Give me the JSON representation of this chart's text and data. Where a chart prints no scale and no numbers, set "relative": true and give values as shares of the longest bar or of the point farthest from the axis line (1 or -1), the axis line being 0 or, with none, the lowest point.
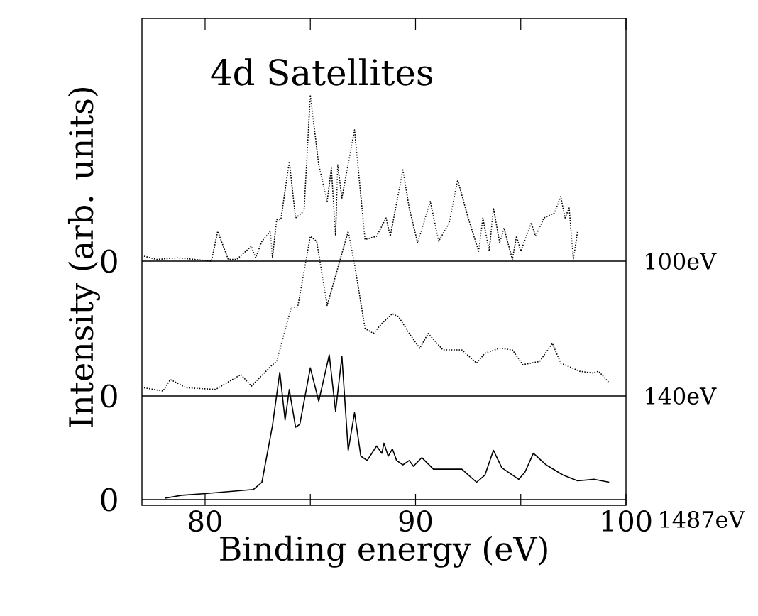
{
  "chart_data": [
    {
      "type": "line",
      "title": "4d Satellites",
      "relative": true,
      "xlim": [
        77,
        100
      ],
      "tick_labels": false,
      "line_style": "dotted",
      "annotations": [
        "0"
      ],
      "series": [
        {
          "name": "100eV",
          "color": "#000000",
          "x": [
            77.1,
            77.7,
            78.7,
            80.3,
            80.6,
            81.1,
            81.5,
            82.2,
            82.4,
            82.7,
            83.1,
            83.2,
            83.4,
            83.6,
            84.0,
            84.3,
            84.7,
            85.0,
            85.4,
            85.8,
            86.0,
            86.2,
            86.3,
            86.5,
            87.1,
            87.6,
            88.15,
            88.6,
            88.8,
            89.4,
            89.7,
            90.1,
            90.7,
            91.1,
            91.6,
            92.0,
            92.5,
            93.0,
            93.2,
            93.5,
            93.7,
            94.0,
            94.2,
            94.6,
            94.8,
            95.0,
            95.5,
            95.7,
            96.1,
            96.6,
            96.9,
            97.1,
            97.3,
            97.5,
            97.7
          ],
          "values": [
            0.03,
            0.01,
            0.02,
            0,
            0.18,
            0.01,
            0.01,
            0.09,
            0.02,
            0.12,
            0.18,
            0.02,
            0.25,
            0.25,
            0.6,
            0.26,
            0.3,
            1.0,
            0.58,
            0.36,
            0.56,
            0.15,
            0.58,
            0.38,
            0.79,
            0.13,
            0.15,
            0.26,
            0.15,
            0.55,
            0.32,
            0.11,
            0.36,
            0.12,
            0.23,
            0.49,
            0.26,
            0.06,
            0.26,
            0.06,
            0.32,
            0.11,
            0.2,
            0.01,
            0.15,
            0.06,
            0.23,
            0.15,
            0.26,
            0.29,
            0.39,
            0.26,
            0.32,
            0.01,
            0.18
          ]
        }
      ]
    },
    {
      "type": "line",
      "ylabel": "Intensity (arb. units)",
      "relative": true,
      "xlim": [
        77,
        100
      ],
      "tick_labels": false,
      "line_style": "dotted",
      "annotations": [
        "0"
      ],
      "series": [
        {
          "name": "140eV",
          "color": "#000000",
          "x": [
            77.1,
            78.0,
            78.35,
            79.1,
            80.5,
            81.7,
            82.2,
            83.2,
            83.4,
            84.1,
            84.4,
            85.0,
            85.3,
            85.8,
            86.8,
            87.1,
            87.6,
            88.0,
            88.4,
            88.9,
            89.2,
            89.7,
            90.2,
            90.6,
            91.3,
            92.2,
            92.9,
            93.3,
            94.0,
            94.6,
            95.1,
            95.9,
            96.5,
            96.9,
            97.8,
            98.4,
            98.7,
            99.2
          ],
          "values": [
            0.05,
            0.03,
            0.1,
            0.05,
            0.04,
            0.13,
            0.06,
            0.19,
            0.21,
            0.54,
            0.54,
            0.97,
            0.94,
            0.55,
            1.0,
            0.8,
            0.41,
            0.38,
            0.44,
            0.5,
            0.48,
            0.38,
            0.29,
            0.38,
            0.28,
            0.28,
            0.2,
            0.26,
            0.29,
            0.28,
            0.19,
            0.21,
            0.32,
            0.2,
            0.15,
            0.14,
            0.15,
            0.08
          ]
        }
      ]
    },
    {
      "type": "line",
      "xlabel": "Binding energy (eV)",
      "relative": true,
      "xlim": [
        77,
        100
      ],
      "xticks": [
        80,
        {
          "value": 85,
          "label": null
        },
        90,
        {
          "value": 95,
          "label": null
        },
        100
      ],
      "tick_labels": "x",
      "line_style": "solid",
      "annotations": [
        "0"
      ],
      "series": [
        {
          "name": "1487eV",
          "color": "#000000",
          "x": [
            78.1,
            78.9,
            79.9,
            82.3,
            82.7,
            83.2,
            83.55,
            83.8,
            84.0,
            84.3,
            84.5,
            85.0,
            85.4,
            85.9,
            86.2,
            86.5,
            86.8,
            87.1,
            87.4,
            87.7,
            88.15,
            88.4,
            88.5,
            88.7,
            88.9,
            89.1,
            89.4,
            89.7,
            89.9,
            90.3,
            90.85,
            92.2,
            92.9,
            93.3,
            93.7,
            94.1,
            94.9,
            95.2,
            95.6,
            96.2,
            97.0,
            97.7,
            98.5,
            99.2
          ],
          "values": [
            0.01,
            0.03,
            0.04,
            0.07,
            0.12,
            0.51,
            0.88,
            0.55,
            0.76,
            0.5,
            0.52,
            0.91,
            0.68,
            1.0,
            0.61,
            0.99,
            0.34,
            0.6,
            0.3,
            0.27,
            0.37,
            0.32,
            0.39,
            0.3,
            0.35,
            0.27,
            0.24,
            0.27,
            0.23,
            0.29,
            0.21,
            0.21,
            0.12,
            0.17,
            0.34,
            0.22,
            0.14,
            0.19,
            0.32,
            0.24,
            0.17,
            0.13,
            0.14,
            0.12
          ]
        }
      ]
    }
  ]
}
